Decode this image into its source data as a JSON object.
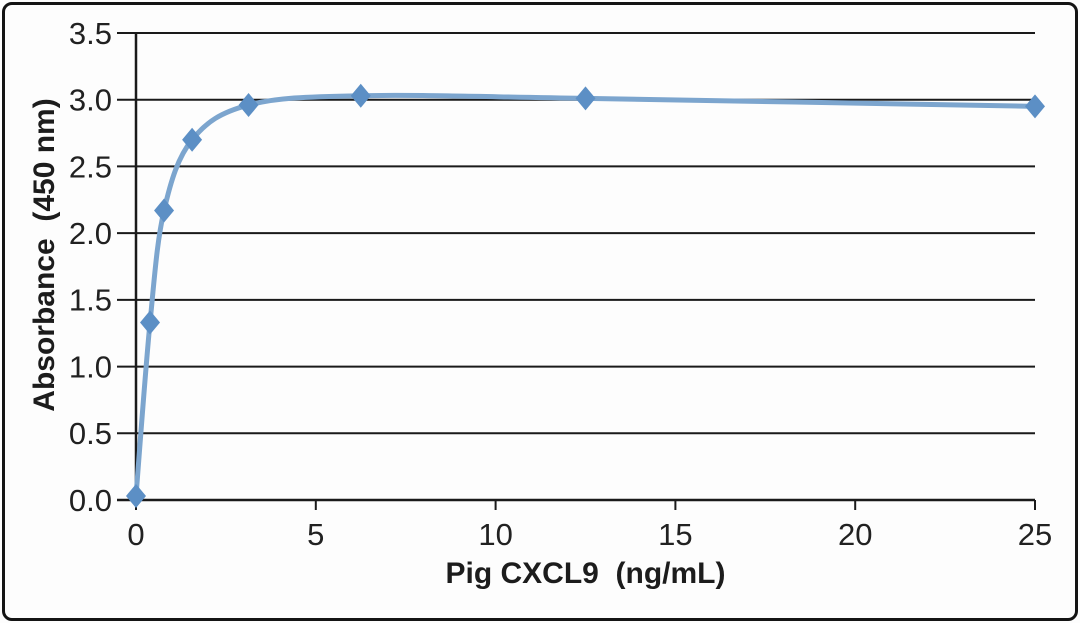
{
  "chart_data": {
    "type": "line",
    "title": "",
    "xlabel": "Pig CXCL9  (ng/mL)",
    "ylabel": "Absorbance  (450 nm)",
    "x": [
      0,
      0.39,
      0.78,
      1.56,
      3.13,
      6.25,
      12.5,
      25
    ],
    "y": [
      0.03,
      1.33,
      2.17,
      2.7,
      2.96,
      3.03,
      3.01,
      2.95
    ],
    "xlim": [
      0,
      25
    ],
    "ylim": [
      0,
      3.5
    ],
    "xtick_values": [
      0,
      5,
      10,
      15,
      20,
      25
    ],
    "xtick_labels": [
      "0",
      "5",
      "10",
      "15",
      "20",
      "25"
    ],
    "ytick_values": [
      0,
      0.5,
      1,
      1.5,
      2,
      2.5,
      3,
      3.5
    ],
    "ytick_labels": [
      "0.0",
      "0.5",
      "1.0",
      "1.5",
      "2.0",
      "2.5",
      "3.0",
      "3.5"
    ],
    "grid": "horizontal",
    "legend": "none",
    "marker": "diamond",
    "colors": {
      "line": "#7CA5CE",
      "marker": "#5C8FC5",
      "axis": "#1A1A1A",
      "text": "#212121",
      "background": "#FDFDFD",
      "border": "#141414"
    }
  }
}
